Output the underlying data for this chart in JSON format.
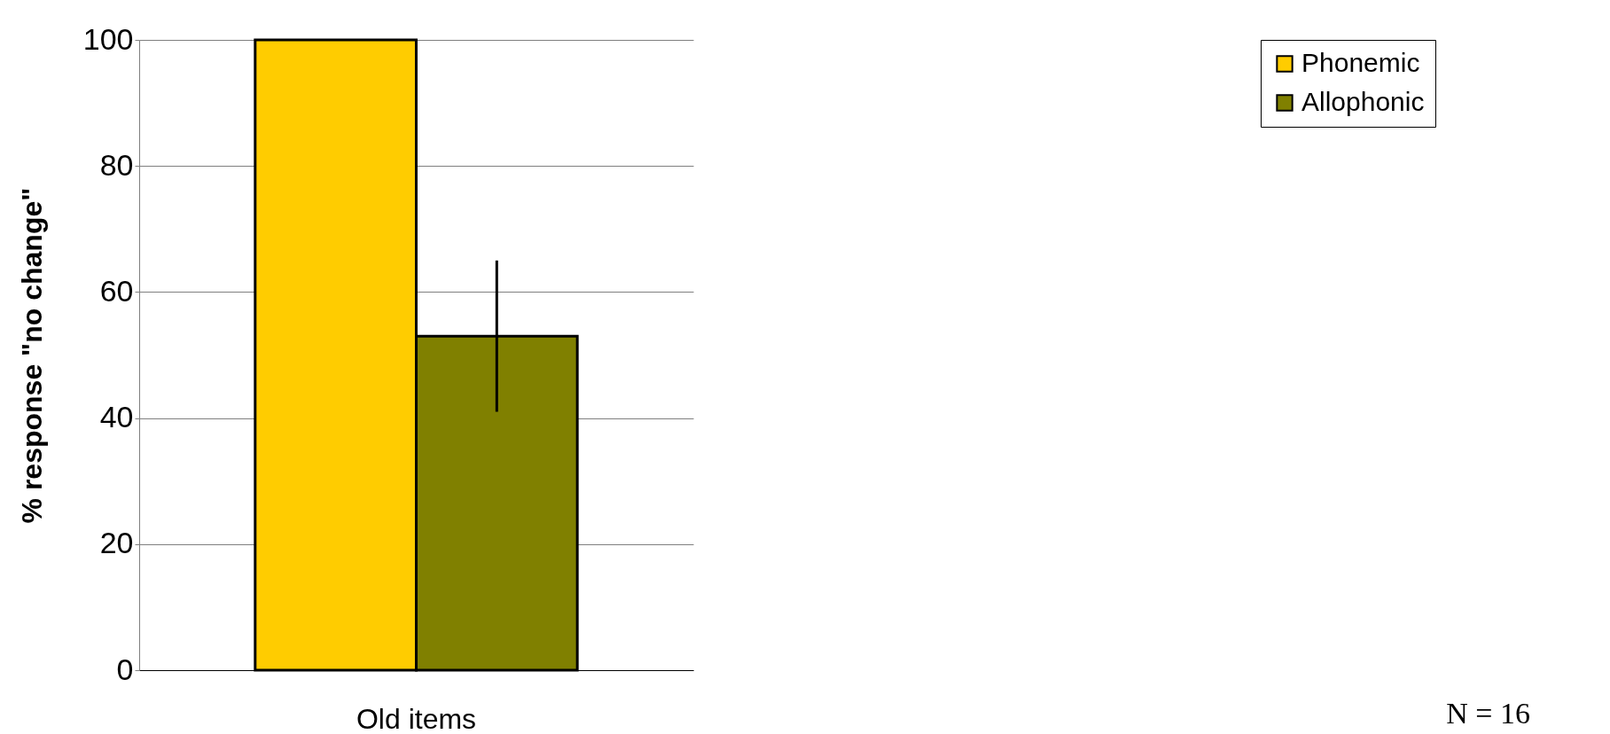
{
  "chart_data": {
    "type": "bar",
    "categories": [
      "Old items"
    ],
    "ylabel": "% response \"no change\"",
    "series": [
      {
        "name": "Phonemic",
        "color": "#ffcc00",
        "values": [
          100
        ]
      },
      {
        "name": "Allophonic",
        "color": "#808000",
        "values": [
          53
        ],
        "errors": [
          [
            41,
            65
          ]
        ]
      }
    ],
    "ylim": [
      0,
      100
    ],
    "yticks": [
      0,
      20,
      40,
      60,
      80,
      100
    ],
    "grid": "y",
    "legend": "right",
    "annotations": [
      "N = 16"
    ]
  }
}
